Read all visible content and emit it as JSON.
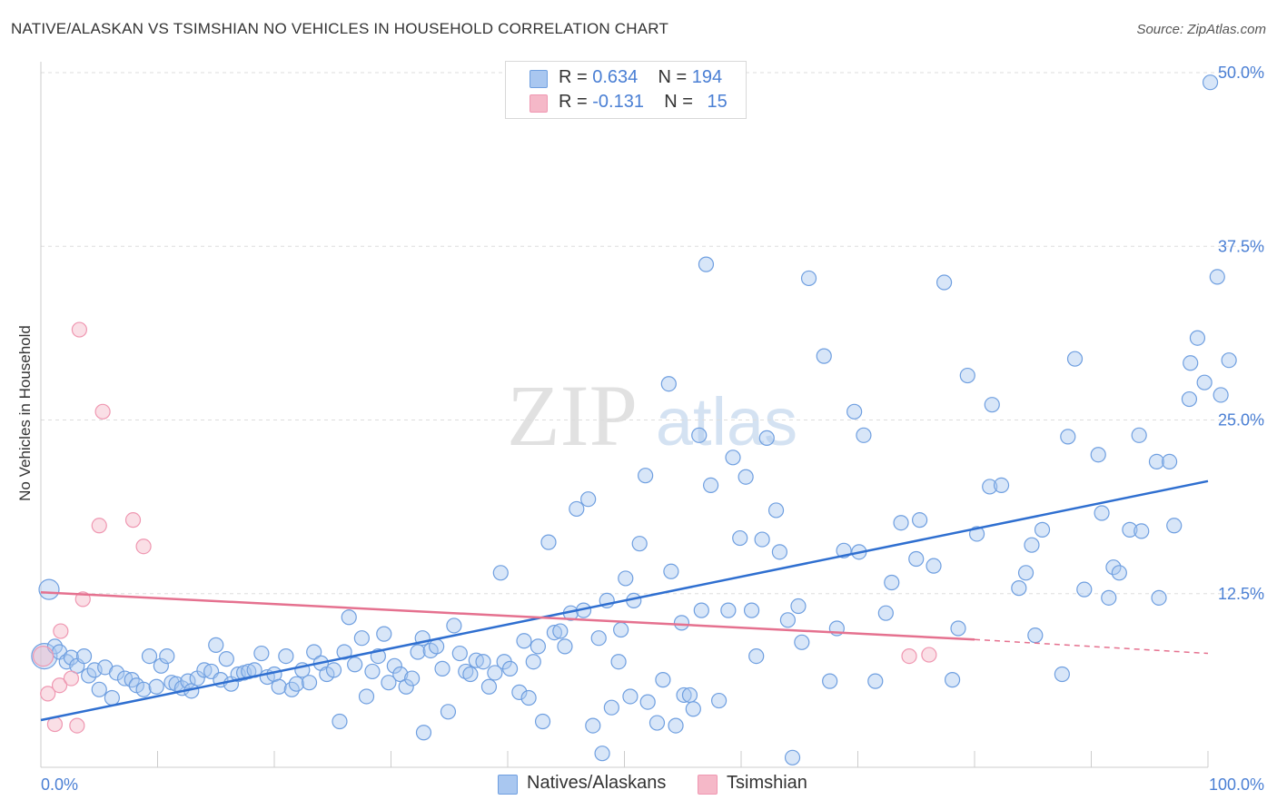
{
  "header": {
    "title": "NATIVE/ALASKAN VS TSIMSHIAN NO VEHICLES IN HOUSEHOLD CORRELATION CHART",
    "source": "Source: ZipAtlas.com"
  },
  "legend_top": {
    "rows": [
      {
        "r_label": "R =",
        "r_value": "0.634",
        "n_label": "N =",
        "n_value": "194",
        "color": "#a9c7f0"
      },
      {
        "r_label": "R =",
        "r_value": "-0.131",
        "n_label": "N =",
        "n_value": "15",
        "color": "#f5b8c8"
      }
    ]
  },
  "legend_bottom": {
    "items": [
      {
        "label": "Natives/Alaskans",
        "color": "#a9c7f0"
      },
      {
        "label": "Tsimshian",
        "color": "#f5b8c8"
      }
    ]
  },
  "watermark": {
    "part1": "ZIP",
    "part2": "atlas"
  },
  "chart_data": {
    "type": "scatter",
    "title": "NATIVE/ALASKAN VS TSIMSHIAN NO VEHICLES IN HOUSEHOLD CORRELATION CHART",
    "xlabel": "",
    "ylabel": "No Vehicles in Household",
    "xlim": [
      0,
      100
    ],
    "ylim": [
      0,
      50
    ],
    "x_tick_labels": [
      "0.0%",
      "100.0%"
    ],
    "y_ticks": [
      12.5,
      25.0,
      37.5,
      50.0
    ],
    "y_tick_labels": [
      "12.5%",
      "25.0%",
      "37.5%",
      "50.0%"
    ],
    "grid": "horizontal dashed",
    "legend": "top-center",
    "series": [
      {
        "name": "Natives/Alaskans",
        "color": "#6f9fe0",
        "fill": "#a9c7f0",
        "R": 0.634,
        "N": 194,
        "trend": {
          "x": [
            0,
            100
          ],
          "y": [
            3.4,
            20.6
          ]
        },
        "points": [
          [
            0.3,
            8.0
          ],
          [
            0.7,
            12.8
          ],
          [
            1.2,
            8.7
          ],
          [
            1.6,
            8.3
          ],
          [
            2.2,
            7.6
          ],
          [
            2.6,
            7.9
          ],
          [
            3.1,
            7.3
          ],
          [
            3.7,
            8.0
          ],
          [
            4.1,
            6.6
          ],
          [
            4.6,
            7.0
          ],
          [
            5.0,
            5.6
          ],
          [
            5.5,
            7.2
          ],
          [
            6.1,
            5.0
          ],
          [
            6.5,
            6.8
          ],
          [
            7.2,
            6.4
          ],
          [
            7.8,
            6.3
          ],
          [
            8.2,
            5.9
          ],
          [
            8.8,
            5.6
          ],
          [
            9.3,
            8.0
          ],
          [
            9.9,
            5.8
          ],
          [
            10.3,
            7.3
          ],
          [
            10.8,
            8.0
          ],
          [
            11.2,
            6.1
          ],
          [
            11.6,
            6.0
          ],
          [
            12.1,
            5.7
          ],
          [
            12.6,
            6.2
          ],
          [
            12.9,
            5.5
          ],
          [
            13.4,
            6.4
          ],
          [
            14.0,
            7.0
          ],
          [
            14.6,
            6.9
          ],
          [
            15.0,
            8.8
          ],
          [
            15.4,
            6.3
          ],
          [
            15.9,
            7.8
          ],
          [
            16.3,
            6.0
          ],
          [
            16.9,
            6.7
          ],
          [
            17.4,
            6.8
          ],
          [
            17.8,
            6.9
          ],
          [
            18.3,
            7.0
          ],
          [
            18.9,
            8.2
          ],
          [
            19.4,
            6.5
          ],
          [
            20.0,
            6.7
          ],
          [
            20.4,
            5.8
          ],
          [
            21.0,
            8.0
          ],
          [
            21.5,
            5.6
          ],
          [
            21.9,
            6.0
          ],
          [
            22.4,
            7.0
          ],
          [
            23.0,
            6.1
          ],
          [
            23.4,
            8.3
          ],
          [
            24.0,
            7.5
          ],
          [
            24.5,
            6.7
          ],
          [
            25.1,
            7.0
          ],
          [
            25.6,
            3.3
          ],
          [
            26.0,
            8.3
          ],
          [
            26.4,
            10.8
          ],
          [
            26.9,
            7.4
          ],
          [
            27.5,
            9.3
          ],
          [
            27.9,
            5.1
          ],
          [
            28.4,
            6.9
          ],
          [
            28.9,
            8.0
          ],
          [
            29.4,
            9.6
          ],
          [
            29.8,
            6.1
          ],
          [
            30.3,
            7.3
          ],
          [
            30.8,
            6.7
          ],
          [
            31.3,
            5.8
          ],
          [
            31.8,
            6.4
          ],
          [
            32.3,
            8.3
          ],
          [
            32.7,
            9.3
          ],
          [
            32.8,
            2.5
          ],
          [
            33.4,
            8.4
          ],
          [
            33.9,
            8.7
          ],
          [
            34.4,
            7.1
          ],
          [
            34.9,
            4.0
          ],
          [
            35.4,
            10.2
          ],
          [
            35.9,
            8.2
          ],
          [
            36.4,
            6.9
          ],
          [
            36.8,
            6.7
          ],
          [
            37.3,
            7.7
          ],
          [
            37.9,
            7.6
          ],
          [
            38.4,
            5.8
          ],
          [
            38.9,
            6.8
          ],
          [
            39.4,
            14.0
          ],
          [
            39.7,
            7.6
          ],
          [
            40.2,
            7.1
          ],
          [
            41.0,
            5.4
          ],
          [
            41.4,
            9.1
          ],
          [
            41.8,
            5.0
          ],
          [
            42.2,
            7.6
          ],
          [
            42.6,
            8.7
          ],
          [
            43.0,
            3.3
          ],
          [
            43.5,
            16.2
          ],
          [
            44.0,
            9.7
          ],
          [
            44.5,
            9.8
          ],
          [
            44.9,
            8.7
          ],
          [
            45.4,
            11.1
          ],
          [
            45.9,
            18.6
          ],
          [
            46.5,
            11.3
          ],
          [
            46.9,
            19.3
          ],
          [
            47.3,
            3.0
          ],
          [
            47.8,
            9.3
          ],
          [
            48.1,
            1.0
          ],
          [
            48.5,
            12.0
          ],
          [
            48.9,
            4.3
          ],
          [
            49.5,
            7.6
          ],
          [
            49.7,
            9.9
          ],
          [
            50.1,
            13.6
          ],
          [
            50.5,
            5.1
          ],
          [
            50.8,
            12.0
          ],
          [
            51.3,
            16.1
          ],
          [
            51.8,
            21.0
          ],
          [
            52.0,
            4.7
          ],
          [
            52.8,
            3.2
          ],
          [
            53.3,
            6.3
          ],
          [
            53.8,
            27.6
          ],
          [
            54.0,
            14.1
          ],
          [
            54.4,
            3.0
          ],
          [
            54.9,
            10.4
          ],
          [
            55.1,
            5.2
          ],
          [
            55.6,
            5.2
          ],
          [
            55.9,
            4.2
          ],
          [
            56.4,
            23.9
          ],
          [
            56.6,
            11.3
          ],
          [
            57.0,
            36.2
          ],
          [
            57.4,
            20.3
          ],
          [
            58.1,
            4.8
          ],
          [
            58.9,
            11.3
          ],
          [
            59.3,
            22.3
          ],
          [
            59.9,
            16.5
          ],
          [
            60.4,
            20.9
          ],
          [
            60.9,
            11.3
          ],
          [
            61.3,
            8.0
          ],
          [
            61.8,
            16.4
          ],
          [
            62.2,
            23.7
          ],
          [
            63.0,
            18.5
          ],
          [
            63.3,
            15.5
          ],
          [
            64.0,
            10.6
          ],
          [
            64.4,
            0.7
          ],
          [
            64.9,
            11.6
          ],
          [
            65.2,
            9.0
          ],
          [
            65.8,
            35.2
          ],
          [
            67.1,
            29.6
          ],
          [
            67.6,
            6.2
          ],
          [
            68.2,
            10.0
          ],
          [
            68.8,
            15.6
          ],
          [
            69.7,
            25.6
          ],
          [
            70.1,
            15.5
          ],
          [
            70.5,
            23.9
          ],
          [
            71.5,
            6.2
          ],
          [
            72.4,
            11.1
          ],
          [
            72.9,
            13.3
          ],
          [
            73.7,
            17.6
          ],
          [
            75.0,
            15.0
          ],
          [
            75.3,
            17.8
          ],
          [
            76.5,
            14.5
          ],
          [
            77.4,
            34.9
          ],
          [
            78.1,
            6.3
          ],
          [
            78.6,
            10.0
          ],
          [
            79.4,
            28.2
          ],
          [
            80.2,
            16.8
          ],
          [
            81.3,
            20.2
          ],
          [
            81.5,
            26.1
          ],
          [
            82.3,
            20.3
          ],
          [
            83.8,
            12.9
          ],
          [
            84.4,
            14.0
          ],
          [
            84.9,
            16.0
          ],
          [
            85.2,
            9.5
          ],
          [
            85.8,
            17.1
          ],
          [
            87.5,
            6.7
          ],
          [
            88.0,
            23.8
          ],
          [
            88.6,
            29.4
          ],
          [
            89.4,
            12.8
          ],
          [
            90.6,
            22.5
          ],
          [
            90.9,
            18.3
          ],
          [
            91.5,
            12.2
          ],
          [
            91.9,
            14.4
          ],
          [
            92.4,
            14.0
          ],
          [
            93.3,
            17.1
          ],
          [
            94.1,
            23.9
          ],
          [
            94.3,
            17.0
          ],
          [
            95.6,
            22.0
          ],
          [
            95.8,
            12.2
          ],
          [
            96.7,
            22.0
          ],
          [
            97.1,
            17.4
          ],
          [
            98.4,
            26.5
          ],
          [
            98.5,
            29.1
          ],
          [
            99.1,
            30.9
          ],
          [
            99.7,
            27.7
          ],
          [
            100.2,
            49.3
          ],
          [
            100.8,
            35.3
          ],
          [
            101.1,
            26.8
          ],
          [
            101.8,
            29.3
          ]
        ]
      },
      {
        "name": "Tsimshian",
        "color": "#ef97b1",
        "fill": "#f5b8c8",
        "R": -0.131,
        "N": 15,
        "trend": {
          "x": [
            0,
            80
          ],
          "y": [
            12.6,
            9.2
          ]
        },
        "trend_extension": {
          "x": [
            80,
            100
          ],
          "y": [
            9.2,
            8.2
          ]
        },
        "points": [
          [
            0.2,
            8.0
          ],
          [
            0.6,
            5.3
          ],
          [
            1.2,
            3.1
          ],
          [
            1.6,
            5.9
          ],
          [
            1.7,
            9.8
          ],
          [
            2.6,
            6.4
          ],
          [
            3.1,
            3.0
          ],
          [
            3.3,
            31.5
          ],
          [
            3.6,
            12.1
          ],
          [
            5.3,
            25.6
          ],
          [
            5.0,
            17.4
          ],
          [
            7.9,
            17.8
          ],
          [
            8.8,
            15.9
          ],
          [
            74.4,
            8.0
          ],
          [
            76.1,
            8.1
          ]
        ]
      }
    ]
  }
}
